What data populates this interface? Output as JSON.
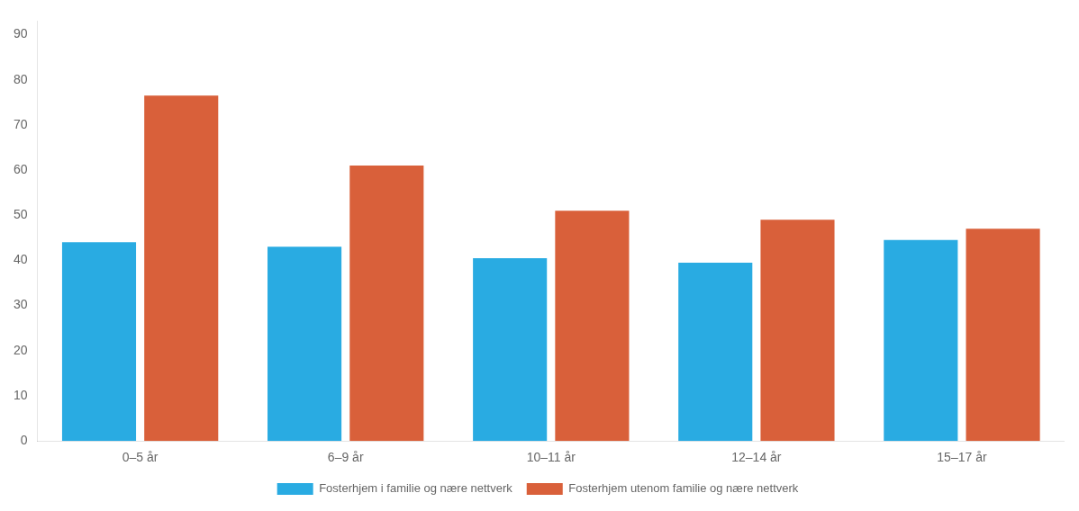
{
  "chart_data": {
    "type": "bar",
    "categories": [
      "0–5 år",
      "6–9 år",
      "10–11 år",
      "12–14 år",
      "15–17 år"
    ],
    "series": [
      {
        "name": "Fosterhjem i familie og nære nettverk",
        "color": "#29abe2",
        "values": [
          44,
          43,
          40.5,
          39.5,
          44.5
        ]
      },
      {
        "name": "Fosterhjem utenom familie og nære nettverk",
        "color": "#d9603a",
        "values": [
          76.5,
          61,
          51,
          49,
          47
        ]
      }
    ],
    "ylim": [
      0,
      93
    ],
    "yticks": [
      0,
      10,
      20,
      30,
      40,
      50,
      60,
      70,
      80,
      90
    ],
    "grid": false,
    "legend": "bottom"
  }
}
